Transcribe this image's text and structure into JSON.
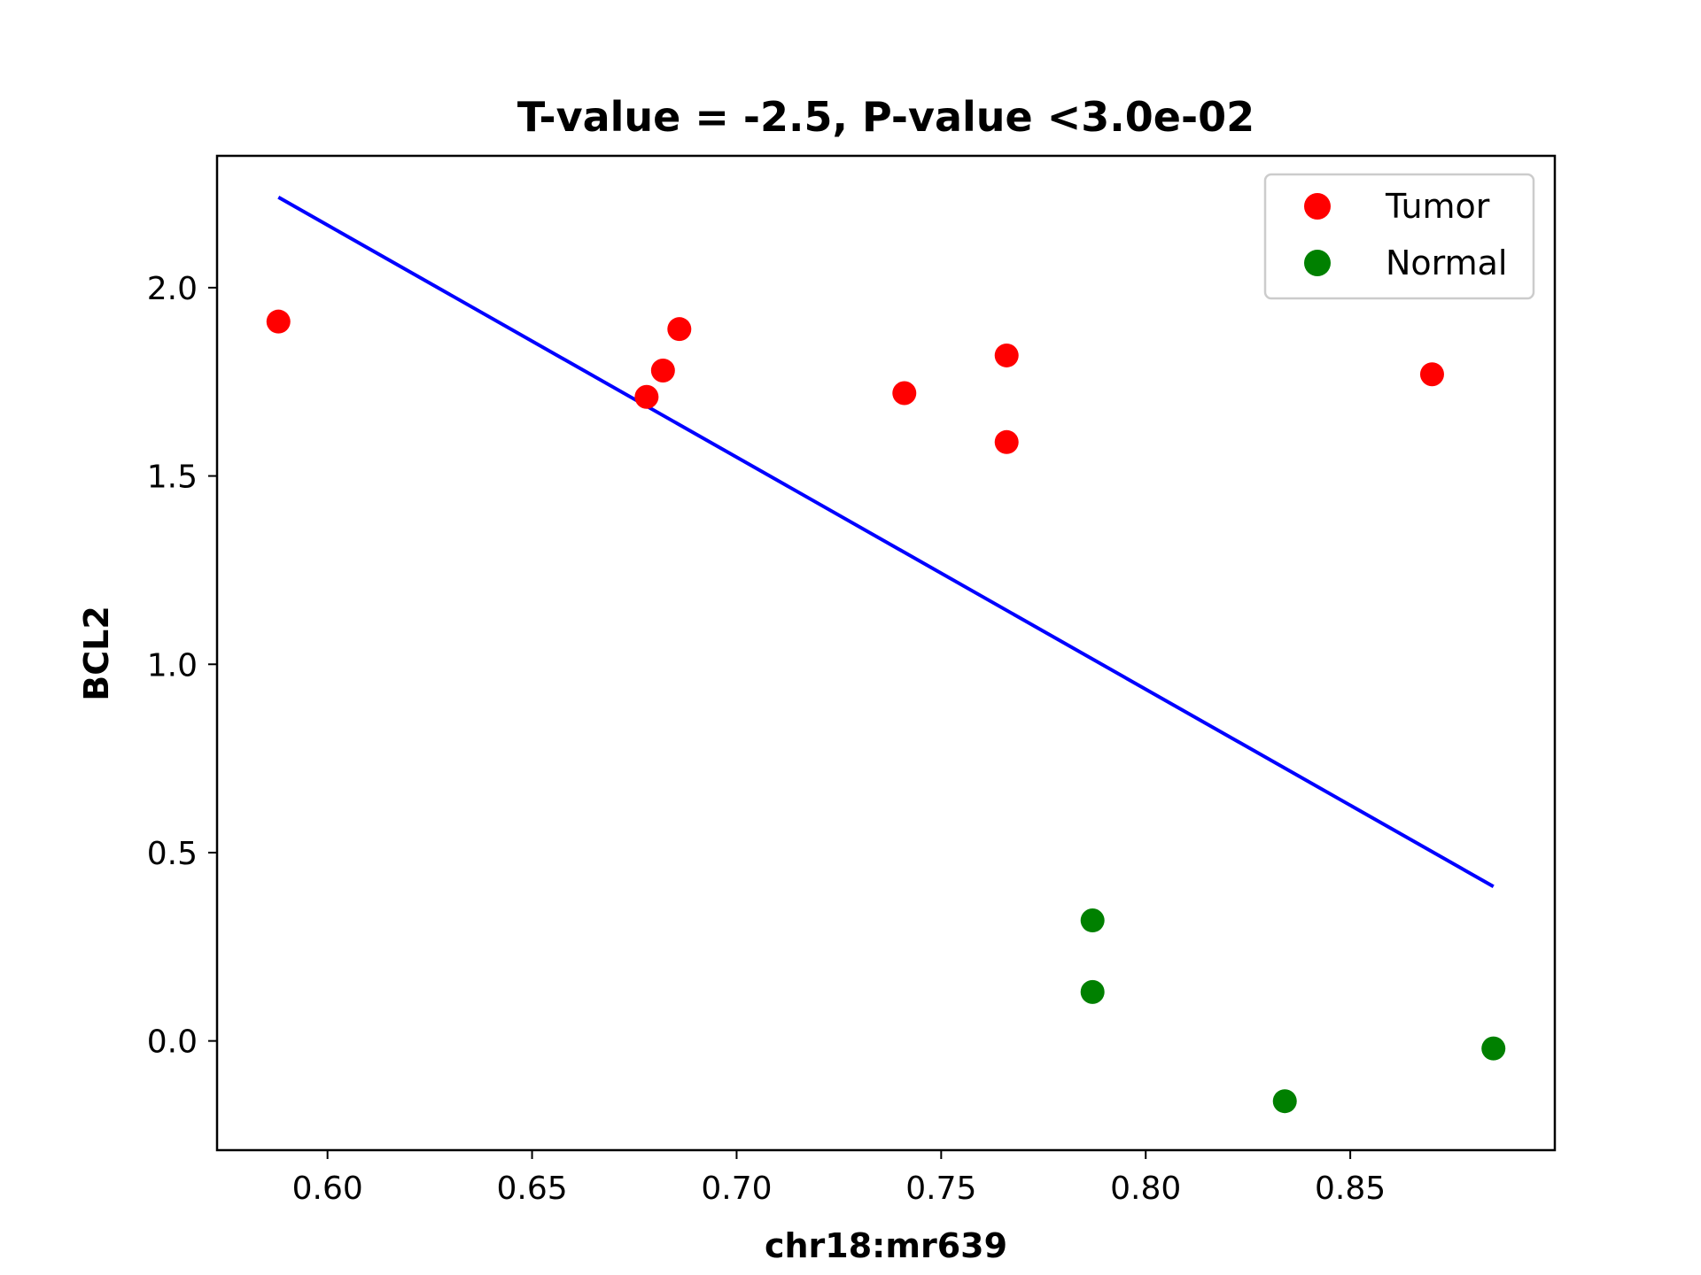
{
  "chart_data": {
    "type": "scatter",
    "title": "T-value = -2.5, P-value <3.0e-02",
    "xlabel": "chr18:mr639",
    "ylabel": "BCL2",
    "xlim": [
      0.573,
      0.9
    ],
    "ylim": [
      -0.29,
      2.35
    ],
    "xticks": [
      0.6,
      0.65,
      0.7,
      0.75,
      0.8,
      0.85
    ],
    "xtick_labels": [
      "0.60",
      "0.65",
      "0.70",
      "0.75",
      "0.80",
      "0.85"
    ],
    "yticks": [
      0.0,
      0.5,
      1.0,
      1.5,
      2.0
    ],
    "ytick_labels": [
      "0.0",
      "0.5",
      "1.0",
      "1.5",
      "2.0"
    ],
    "grid": false,
    "legend_position": "top-right",
    "series": [
      {
        "name": "Tumor",
        "color": "#ff0000",
        "points": [
          {
            "x": 0.588,
            "y": 1.91
          },
          {
            "x": 0.678,
            "y": 1.71
          },
          {
            "x": 0.682,
            "y": 1.78
          },
          {
            "x": 0.686,
            "y": 1.89
          },
          {
            "x": 0.741,
            "y": 1.72
          },
          {
            "x": 0.766,
            "y": 1.82
          },
          {
            "x": 0.766,
            "y": 1.59
          },
          {
            "x": 0.87,
            "y": 1.77
          }
        ]
      },
      {
        "name": "Normal",
        "color": "#008000",
        "points": [
          {
            "x": 0.787,
            "y": 0.32
          },
          {
            "x": 0.787,
            "y": 0.13
          },
          {
            "x": 0.834,
            "y": -0.16
          },
          {
            "x": 0.885,
            "y": -0.02
          }
        ]
      }
    ],
    "fit_line": {
      "color": "#0000ff",
      "points": [
        {
          "x": 0.588,
          "y": 2.24
        },
        {
          "x": 0.885,
          "y": 0.41
        }
      ]
    }
  }
}
